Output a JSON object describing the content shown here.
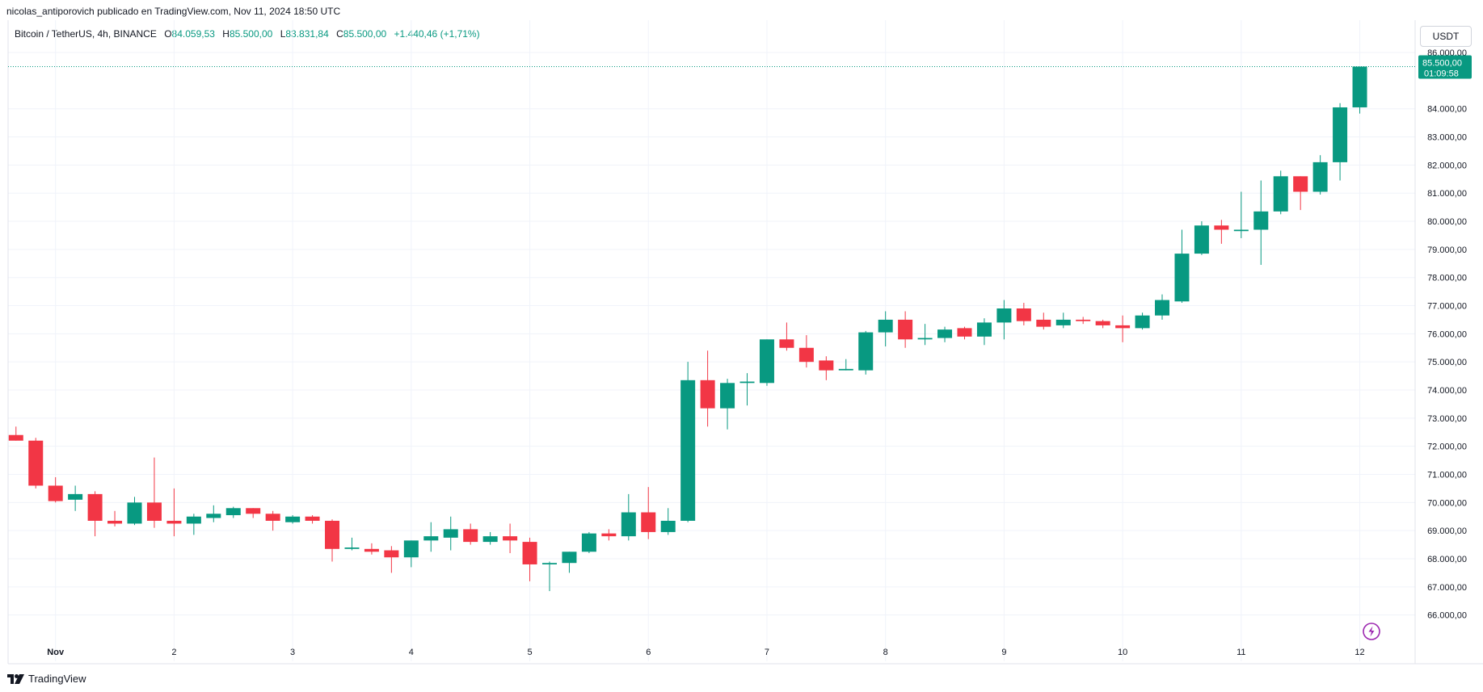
{
  "header": {
    "publisher_line": "nicolas_antiporovich publicado en TradingView.com, Nov 11, 2024 18:50 UTC"
  },
  "legend": {
    "symbol": "Bitcoin / TetherUS, 4h, BINANCE",
    "open_label": "O",
    "open_value": "84.059,53",
    "high_label": "H",
    "high_value": "85.500,00",
    "low_label": "L",
    "low_value": "83.831,84",
    "close_label": "C",
    "close_value": "85.500,00",
    "change": "+1.440,46 (+1,71%)"
  },
  "currency_button": "USDT",
  "price_tag": {
    "price": "85.500,00",
    "countdown": "01:09:58"
  },
  "footer": {
    "brand": "TradingView"
  },
  "colors": {
    "up": "#089981",
    "down": "#f23645",
    "grid": "#f0f3fa",
    "axis_text": "#131722"
  },
  "chart_data": {
    "type": "candlestick",
    "timeframe": "4h",
    "x_ticks": [
      {
        "label": "Nov",
        "t": 2
      },
      {
        "label": "2",
        "t": 8
      },
      {
        "label": "3",
        "t": 14
      },
      {
        "label": "4",
        "t": 20
      },
      {
        "label": "5",
        "t": 26
      },
      {
        "label": "6",
        "t": 32
      },
      {
        "label": "7",
        "t": 38
      },
      {
        "label": "8",
        "t": 44
      },
      {
        "label": "9",
        "t": 50
      },
      {
        "label": "10",
        "t": 56
      },
      {
        "label": "11",
        "t": 62
      },
      {
        "label": "12",
        "t": 68
      }
    ],
    "y_ticks": [
      {
        "label": "66.000,00",
        "v": 66000
      },
      {
        "label": "67.000,00",
        "v": 67000
      },
      {
        "label": "68.000,00",
        "v": 68000
      },
      {
        "label": "69.000,00",
        "v": 69000
      },
      {
        "label": "70.000,00",
        "v": 70000
      },
      {
        "label": "71.000,00",
        "v": 71000
      },
      {
        "label": "72.000,00",
        "v": 72000
      },
      {
        "label": "73.000,00",
        "v": 73000
      },
      {
        "label": "74.000,00",
        "v": 74000
      },
      {
        "label": "75.000,00",
        "v": 75000
      },
      {
        "label": "76.000,00",
        "v": 76000
      },
      {
        "label": "77.000,00",
        "v": 77000
      },
      {
        "label": "78.000,00",
        "v": 78000
      },
      {
        "label": "79.000,00",
        "v": 79000
      },
      {
        "label": "80.000,00",
        "v": 80000
      },
      {
        "label": "81.000,00",
        "v": 81000
      },
      {
        "label": "82.000,00",
        "v": 82000
      },
      {
        "label": "83.000,00",
        "v": 83000
      },
      {
        "label": "84.000,00",
        "v": 84000
      },
      {
        "label": "86.000,00",
        "v": 86000
      }
    ],
    "y_range": [
      65100,
      87150
    ],
    "x_range": [
      -0.4,
      70.8
    ],
    "last_price": 85500,
    "candles": [
      {
        "o": 72400,
        "h": 72700,
        "l": 72200,
        "c": 72200
      },
      {
        "o": 72200,
        "h": 72300,
        "l": 70500,
        "c": 70600
      },
      {
        "o": 70600,
        "h": 70900,
        "l": 70000,
        "c": 70050
      },
      {
        "o": 70100,
        "h": 70600,
        "l": 69700,
        "c": 70300
      },
      {
        "o": 70300,
        "h": 70400,
        "l": 68800,
        "c": 69350
      },
      {
        "o": 69350,
        "h": 69700,
        "l": 69150,
        "c": 69250
      },
      {
        "o": 69250,
        "h": 70200,
        "l": 69200,
        "c": 70000
      },
      {
        "o": 70000,
        "h": 71600,
        "l": 69100,
        "c": 69350
      },
      {
        "o": 69350,
        "h": 70500,
        "l": 68800,
        "c": 69250
      },
      {
        "o": 69250,
        "h": 69600,
        "l": 68850,
        "c": 69500
      },
      {
        "o": 69450,
        "h": 69900,
        "l": 69300,
        "c": 69600
      },
      {
        "o": 69550,
        "h": 69850,
        "l": 69450,
        "c": 69800
      },
      {
        "o": 69800,
        "h": 69800,
        "l": 69450,
        "c": 69600
      },
      {
        "o": 69600,
        "h": 69700,
        "l": 69000,
        "c": 69350
      },
      {
        "o": 69300,
        "h": 69550,
        "l": 69250,
        "c": 69500
      },
      {
        "o": 69500,
        "h": 69550,
        "l": 69250,
        "c": 69350
      },
      {
        "o": 69350,
        "h": 69400,
        "l": 67900,
        "c": 68350
      },
      {
        "o": 68350,
        "h": 68750,
        "l": 68300,
        "c": 68400
      },
      {
        "o": 68350,
        "h": 68550,
        "l": 68150,
        "c": 68250
      },
      {
        "o": 68300,
        "h": 68450,
        "l": 67500,
        "c": 68050
      },
      {
        "o": 68050,
        "h": 68650,
        "l": 67700,
        "c": 68650
      },
      {
        "o": 68650,
        "h": 69300,
        "l": 68250,
        "c": 68800
      },
      {
        "o": 68750,
        "h": 69500,
        "l": 68300,
        "c": 69050
      },
      {
        "o": 69050,
        "h": 69250,
        "l": 68500,
        "c": 68600
      },
      {
        "o": 68600,
        "h": 68950,
        "l": 68500,
        "c": 68800
      },
      {
        "o": 68800,
        "h": 69250,
        "l": 68200,
        "c": 68650
      },
      {
        "o": 68600,
        "h": 68750,
        "l": 67200,
        "c": 67800
      },
      {
        "o": 67800,
        "h": 67900,
        "l": 66850,
        "c": 67850
      },
      {
        "o": 67850,
        "h": 68250,
        "l": 67500,
        "c": 68250
      },
      {
        "o": 68250,
        "h": 68950,
        "l": 68200,
        "c": 68900
      },
      {
        "o": 68900,
        "h": 69050,
        "l": 68650,
        "c": 68800
      },
      {
        "o": 68800,
        "h": 70300,
        "l": 68650,
        "c": 69650
      },
      {
        "o": 69650,
        "h": 70550,
        "l": 68700,
        "c": 68950
      },
      {
        "o": 68950,
        "h": 69800,
        "l": 68850,
        "c": 69350
      },
      {
        "o": 69350,
        "h": 75000,
        "l": 69300,
        "c": 74350
      },
      {
        "o": 74350,
        "h": 75400,
        "l": 72700,
        "c": 73350
      },
      {
        "o": 73350,
        "h": 74400,
        "l": 72600,
        "c": 74250
      },
      {
        "o": 74250,
        "h": 74600,
        "l": 73450,
        "c": 74300
      },
      {
        "o": 74250,
        "h": 75800,
        "l": 74150,
        "c": 75800
      },
      {
        "o": 75800,
        "h": 76400,
        "l": 75400,
        "c": 75500
      },
      {
        "o": 75500,
        "h": 75950,
        "l": 74800,
        "c": 75000
      },
      {
        "o": 75050,
        "h": 75200,
        "l": 74350,
        "c": 74700
      },
      {
        "o": 74700,
        "h": 75100,
        "l": 74700,
        "c": 74750
      },
      {
        "o": 74700,
        "h": 76100,
        "l": 74550,
        "c": 76050
      },
      {
        "o": 76050,
        "h": 76800,
        "l": 75550,
        "c": 76500
      },
      {
        "o": 76500,
        "h": 76800,
        "l": 75500,
        "c": 75800
      },
      {
        "o": 75800,
        "h": 76350,
        "l": 75600,
        "c": 75850
      },
      {
        "o": 75850,
        "h": 76250,
        "l": 75700,
        "c": 76150
      },
      {
        "o": 76200,
        "h": 76250,
        "l": 75800,
        "c": 75900
      },
      {
        "o": 75900,
        "h": 76550,
        "l": 75600,
        "c": 76400
      },
      {
        "o": 76400,
        "h": 77200,
        "l": 75800,
        "c": 76900
      },
      {
        "o": 76900,
        "h": 77100,
        "l": 76300,
        "c": 76450
      },
      {
        "o": 76500,
        "h": 76750,
        "l": 76150,
        "c": 76250
      },
      {
        "o": 76300,
        "h": 76750,
        "l": 76200,
        "c": 76500
      },
      {
        "o": 76500,
        "h": 76600,
        "l": 76350,
        "c": 76450
      },
      {
        "o": 76450,
        "h": 76500,
        "l": 76200,
        "c": 76300
      },
      {
        "o": 76300,
        "h": 76650,
        "l": 75700,
        "c": 76200
      },
      {
        "o": 76200,
        "h": 76750,
        "l": 76150,
        "c": 76650
      },
      {
        "o": 76650,
        "h": 77400,
        "l": 76500,
        "c": 77200
      },
      {
        "o": 77150,
        "h": 79700,
        "l": 77100,
        "c": 78850
      },
      {
        "o": 78850,
        "h": 80000,
        "l": 78800,
        "c": 79850
      },
      {
        "o": 79850,
        "h": 80050,
        "l": 79200,
        "c": 79700
      },
      {
        "o": 79650,
        "h": 81050,
        "l": 79400,
        "c": 79700
      },
      {
        "o": 79700,
        "h": 81450,
        "l": 78450,
        "c": 80350
      },
      {
        "o": 80350,
        "h": 81800,
        "l": 80250,
        "c": 81600
      },
      {
        "o": 81600,
        "h": 81600,
        "l": 80400,
        "c": 81050
      },
      {
        "o": 81050,
        "h": 82350,
        "l": 80950,
        "c": 82100
      },
      {
        "o": 82100,
        "h": 84200,
        "l": 81450,
        "c": 84050
      },
      {
        "o": 84050,
        "h": 85500,
        "l": 83830,
        "c": 85500
      }
    ]
  }
}
